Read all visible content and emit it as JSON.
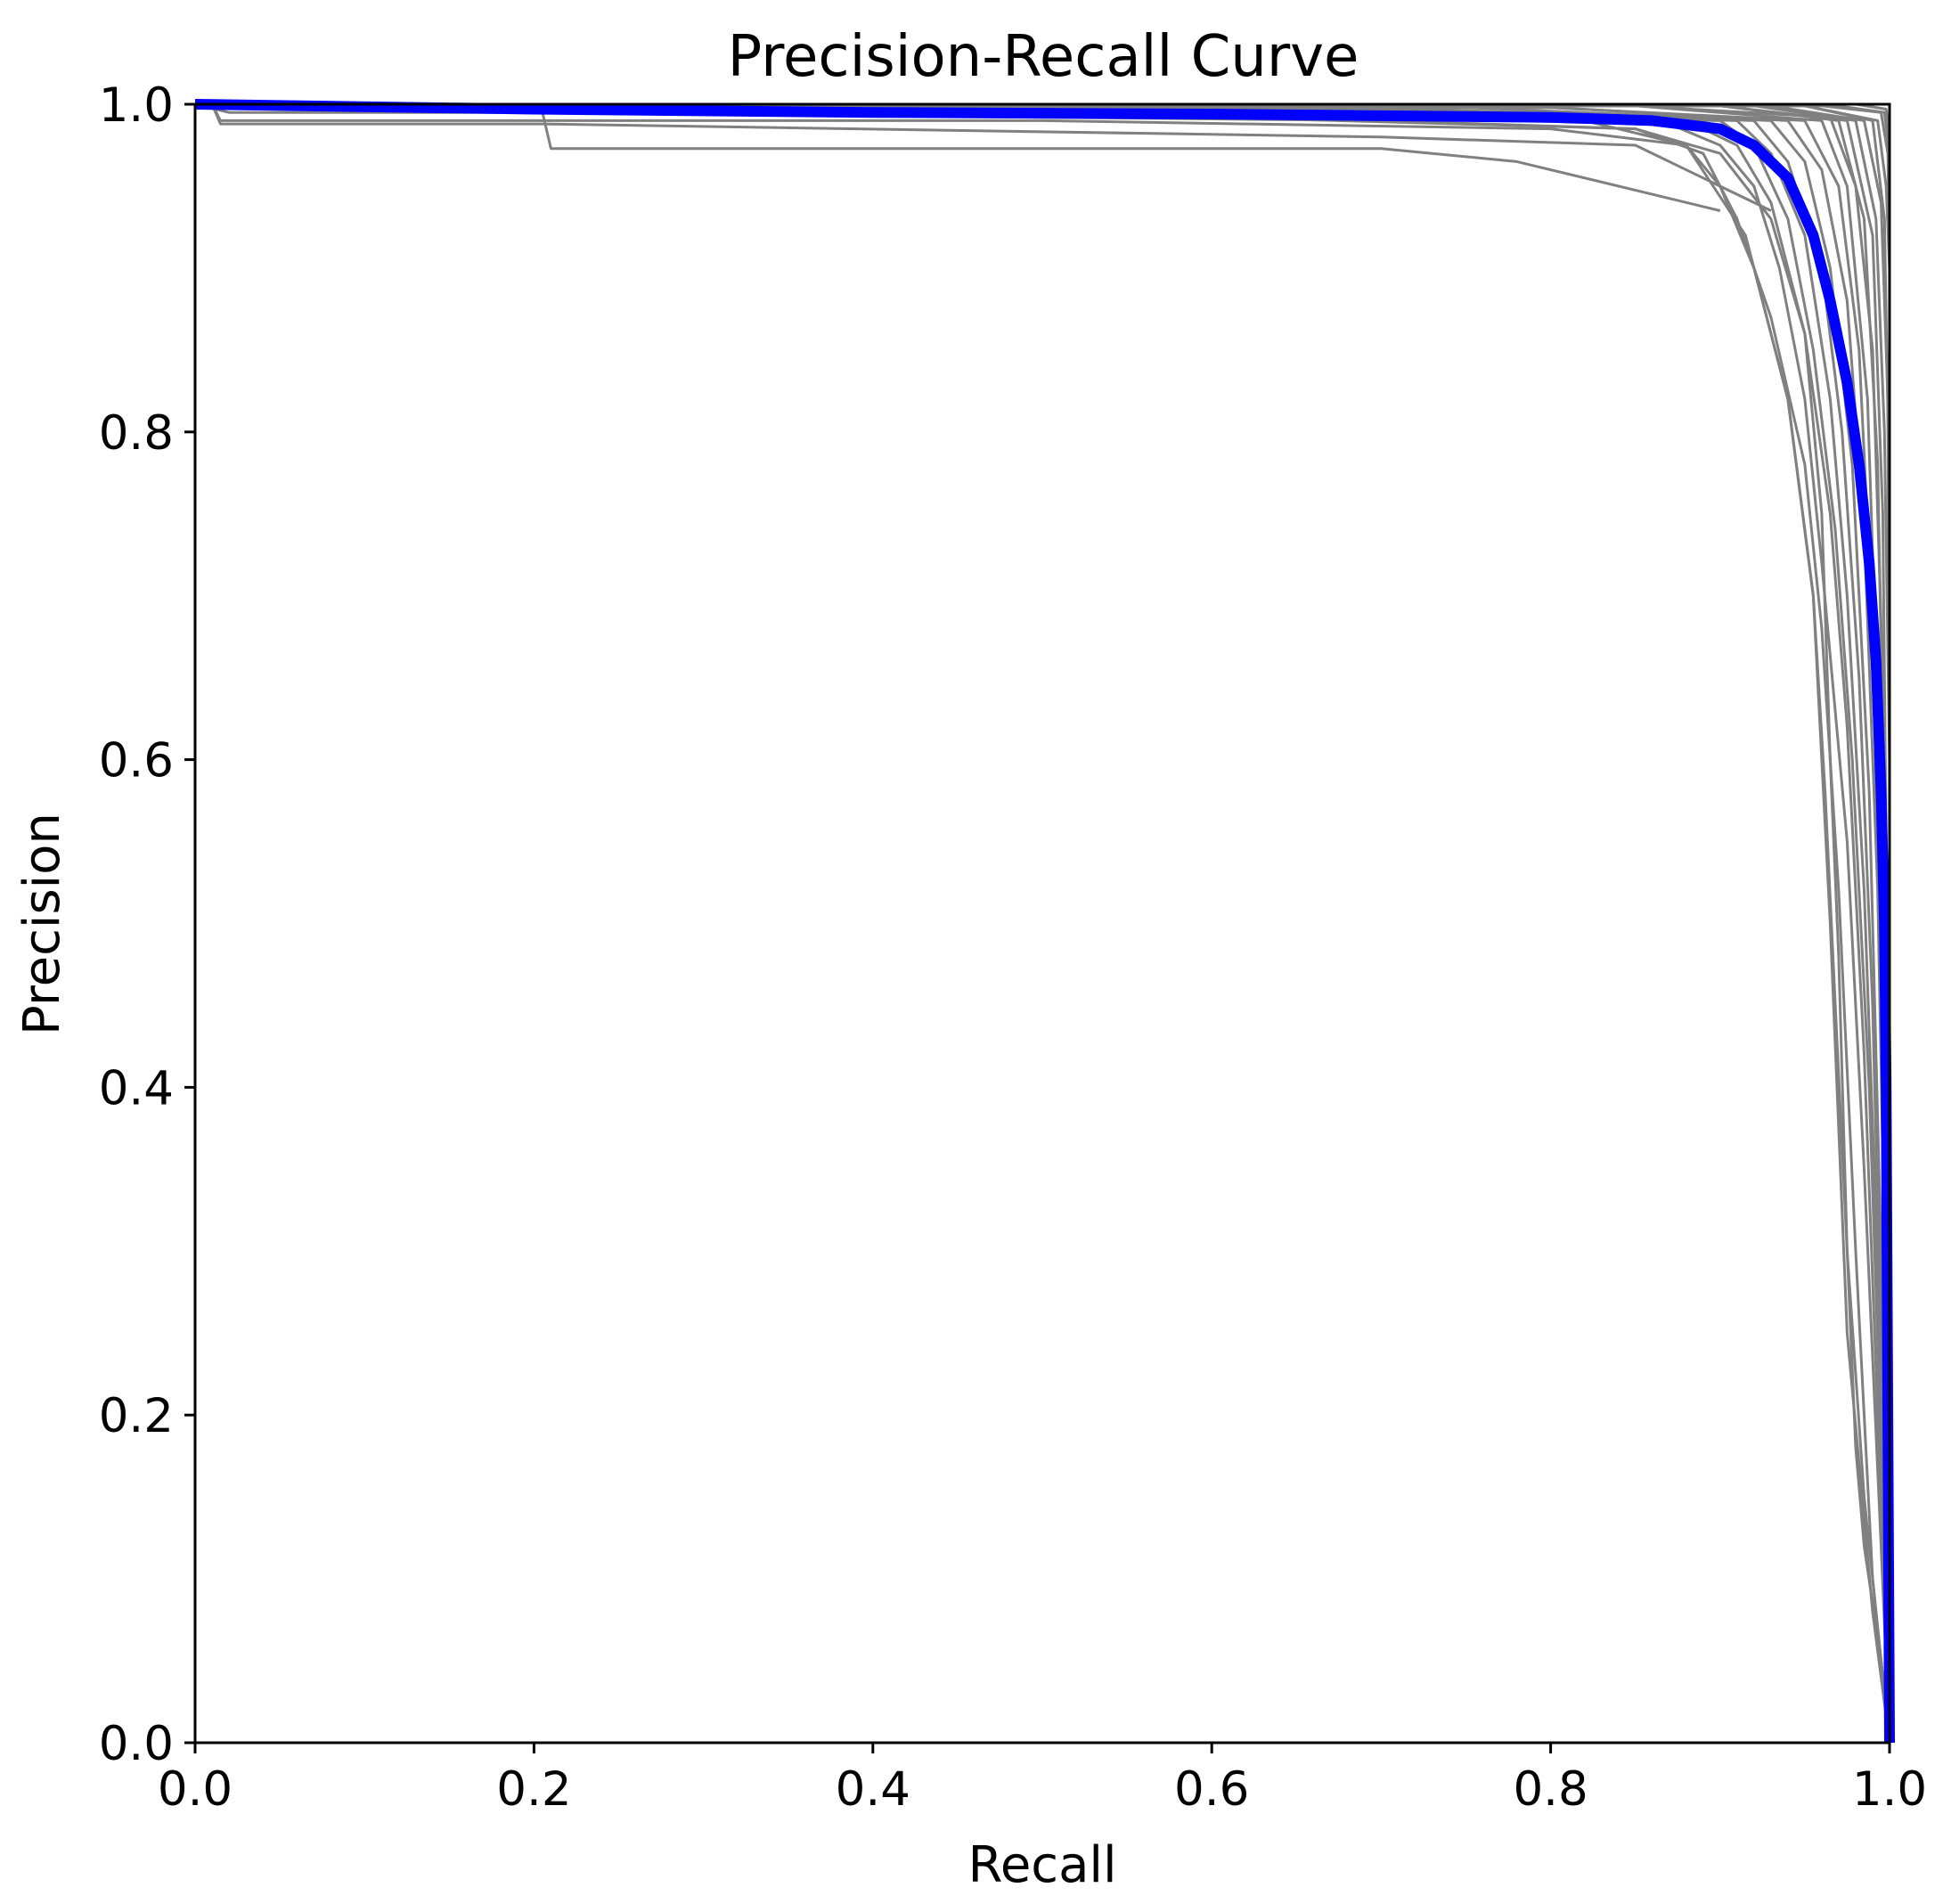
{
  "chart_data": {
    "type": "line",
    "title": "Precision-Recall Curve",
    "xlabel": "Recall",
    "ylabel": "Precision",
    "xlim": [
      0,
      1
    ],
    "ylim": [
      0,
      1
    ],
    "xticks": [
      "0.0",
      "0.2",
      "0.4",
      "0.6",
      "0.8",
      "1.0"
    ],
    "yticks": [
      "0.0",
      "0.2",
      "0.4",
      "0.6",
      "0.8",
      "1.0"
    ],
    "grid": false,
    "legend": "none",
    "colors": {
      "per_class": "#808080",
      "overall": "#0000ff",
      "axes": "#000000"
    },
    "overall_series": {
      "x": [
        0.0,
        0.2,
        0.4,
        0.6,
        0.8,
        0.86,
        0.9,
        0.92,
        0.94,
        0.955,
        0.965,
        0.975,
        0.982,
        0.988,
        0.992,
        0.995,
        0.997,
        0.998,
        0.999,
        1.0
      ],
      "y": [
        1.0,
        0.997,
        0.995,
        0.994,
        0.992,
        0.99,
        0.985,
        0.975,
        0.955,
        0.92,
        0.88,
        0.83,
        0.78,
        0.72,
        0.66,
        0.58,
        0.5,
        0.4,
        0.2,
        0.0
      ]
    },
    "per_class_series": [
      {
        "x": [
          0.0,
          0.01,
          0.015,
          0.2,
          0.205,
          0.7,
          0.85,
          0.9,
          0.93
        ],
        "y": [
          1.0,
          1.0,
          0.988,
          0.988,
          0.988,
          0.98,
          0.975,
          0.95,
          0.935
        ]
      },
      {
        "x": [
          0.0,
          0.02,
          0.205,
          0.21,
          0.7,
          0.78,
          0.86,
          0.9
        ],
        "y": [
          1.0,
          0.995,
          0.995,
          0.973,
          0.973,
          0.965,
          0.945,
          0.935
        ]
      },
      {
        "x": [
          0.0,
          0.01,
          0.015,
          0.5,
          0.8,
          0.88,
          0.9,
          0.92,
          0.94,
          0.955,
          0.965,
          0.975,
          0.99,
          1.0
        ],
        "y": [
          1.0,
          1.0,
          0.99,
          0.99,
          0.985,
          0.975,
          0.95,
          0.9,
          0.82,
          0.7,
          0.5,
          0.25,
          0.08,
          0.0
        ]
      },
      {
        "x": [
          0.0,
          0.5,
          0.85,
          0.89,
          0.91,
          0.93,
          0.95,
          0.96,
          0.97,
          0.98,
          0.99,
          1.0
        ],
        "y": [
          1.0,
          0.995,
          0.985,
          0.97,
          0.93,
          0.87,
          0.78,
          0.68,
          0.52,
          0.3,
          0.1,
          0.0
        ]
      },
      {
        "x": [
          0.0,
          0.5,
          0.87,
          0.9,
          0.92,
          0.935,
          0.95,
          0.96,
          0.975,
          0.985,
          0.995,
          1.0
        ],
        "y": [
          1.0,
          0.996,
          0.988,
          0.975,
          0.95,
          0.9,
          0.82,
          0.72,
          0.55,
          0.35,
          0.12,
          0.0
        ]
      },
      {
        "x": [
          0.0,
          0.6,
          0.88,
          0.91,
          0.93,
          0.95,
          0.965,
          0.975,
          0.985,
          0.993,
          1.0
        ],
        "y": [
          1.0,
          0.997,
          0.99,
          0.975,
          0.94,
          0.86,
          0.75,
          0.62,
          0.42,
          0.2,
          0.0
        ]
      },
      {
        "x": [
          0.0,
          0.6,
          0.9,
          0.92,
          0.94,
          0.955,
          0.968,
          0.978,
          0.988,
          0.995,
          1.0
        ],
        "y": [
          1.0,
          0.997,
          0.99,
          0.975,
          0.93,
          0.85,
          0.74,
          0.6,
          0.4,
          0.18,
          0.0
        ]
      },
      {
        "x": [
          0.0,
          0.7,
          0.91,
          0.93,
          0.95,
          0.965,
          0.975,
          0.985,
          0.992,
          0.998,
          1.0
        ],
        "y": [
          1.0,
          0.997,
          0.99,
          0.97,
          0.92,
          0.82,
          0.7,
          0.52,
          0.32,
          0.1,
          0.0
        ]
      },
      {
        "x": [
          0.0,
          0.7,
          0.92,
          0.94,
          0.96,
          0.972,
          0.982,
          0.99,
          0.996,
          1.0
        ],
        "y": [
          1.0,
          0.998,
          0.99,
          0.965,
          0.9,
          0.8,
          0.65,
          0.45,
          0.2,
          0.0
        ]
      },
      {
        "x": [
          0.0,
          0.75,
          0.93,
          0.95,
          0.965,
          0.978,
          0.988,
          0.995,
          1.0
        ],
        "y": [
          1.0,
          0.998,
          0.99,
          0.965,
          0.9,
          0.78,
          0.58,
          0.3,
          0.0
        ]
      },
      {
        "x": [
          0.0,
          0.8,
          0.94,
          0.96,
          0.975,
          0.985,
          0.993,
          0.998,
          1.0
        ],
        "y": [
          1.0,
          0.998,
          0.99,
          0.96,
          0.88,
          0.74,
          0.52,
          0.25,
          0.0
        ]
      },
      {
        "x": [
          0.0,
          0.8,
          0.95,
          0.97,
          0.982,
          0.99,
          0.996,
          1.0
        ],
        "y": [
          1.0,
          0.998,
          0.99,
          0.95,
          0.85,
          0.68,
          0.4,
          0.0
        ]
      },
      {
        "x": [
          0.0,
          0.85,
          0.96,
          0.975,
          0.987,
          0.994,
          0.998,
          1.0
        ],
        "y": [
          1.0,
          0.999,
          0.99,
          0.95,
          0.82,
          0.6,
          0.3,
          0.0
        ]
      },
      {
        "x": [
          0.0,
          0.85,
          0.965,
          0.98,
          0.99,
          0.996,
          0.999,
          1.0
        ],
        "y": [
          1.0,
          0.999,
          0.992,
          0.95,
          0.85,
          0.65,
          0.35,
          0.0
        ]
      },
      {
        "x": [
          0.0,
          0.9,
          0.97,
          0.985,
          0.993,
          0.998,
          1.0
        ],
        "y": [
          1.0,
          0.999,
          0.99,
          0.93,
          0.78,
          0.5,
          0.0
        ]
      },
      {
        "x": [
          0.0,
          0.9,
          0.975,
          0.99,
          0.996,
          0.999,
          1.0
        ],
        "y": [
          1.0,
          0.999,
          0.99,
          0.92,
          0.75,
          0.45,
          0.0
        ]
      },
      {
        "x": [
          0.0,
          0.92,
          0.98,
          0.992,
          0.997,
          1.0,
          1.0
        ],
        "y": [
          1.0,
          0.999,
          0.99,
          0.93,
          0.8,
          0.6,
          0.0
        ]
      },
      {
        "x": [
          0.0,
          0.93,
          0.985,
          0.995,
          0.999,
          1.0,
          1.0
        ],
        "y": [
          1.0,
          0.999,
          0.99,
          0.94,
          0.82,
          0.6,
          0.0
        ]
      },
      {
        "x": [
          0.0,
          0.95,
          0.99,
          0.997,
          1.0,
          1.0
        ],
        "y": [
          1.0,
          0.999,
          0.99,
          0.93,
          0.75,
          0.0
        ]
      },
      {
        "x": [
          0.0,
          0.95,
          0.993,
          0.998,
          1.0,
          1.0
        ],
        "y": [
          1.0,
          0.999,
          0.99,
          0.95,
          0.9,
          0.0
        ]
      },
      {
        "x": [
          0.0,
          0.96,
          0.995,
          0.999,
          1.0,
          1.0
        ],
        "y": [
          1.0,
          0.999,
          0.995,
          0.97,
          0.9,
          0.0
        ]
      },
      {
        "x": [
          0.0,
          0.97,
          0.997,
          1.0,
          1.0
        ],
        "y": [
          1.0,
          0.999,
          0.995,
          0.97,
          0.0
        ]
      },
      {
        "x": [
          0.0,
          0.98,
          0.998,
          1.0,
          1.0
        ],
        "y": [
          1.0,
          1.0,
          0.997,
          0.98,
          0.0
        ]
      },
      {
        "x": [
          0.0,
          0.3,
          0.7,
          0.85,
          0.9,
          0.93,
          0.95,
          0.96,
          0.965,
          0.97,
          0.975,
          0.98,
          0.985,
          0.995,
          1.0
        ],
        "y": [
          1.0,
          0.994,
          0.99,
          0.985,
          0.97,
          0.93,
          0.86,
          0.75,
          0.6,
          0.48,
          0.3,
          0.18,
          0.12,
          0.05,
          0.0
        ]
      },
      {
        "x": [
          0.0,
          0.5,
          0.82,
          0.88,
          0.915,
          0.94,
          0.955,
          0.962,
          0.968,
          0.975,
          0.985,
          1.0
        ],
        "y": [
          1.0,
          0.995,
          0.99,
          0.975,
          0.92,
          0.82,
          0.7,
          0.58,
          0.45,
          0.3,
          0.15,
          0.0
        ]
      }
    ]
  }
}
